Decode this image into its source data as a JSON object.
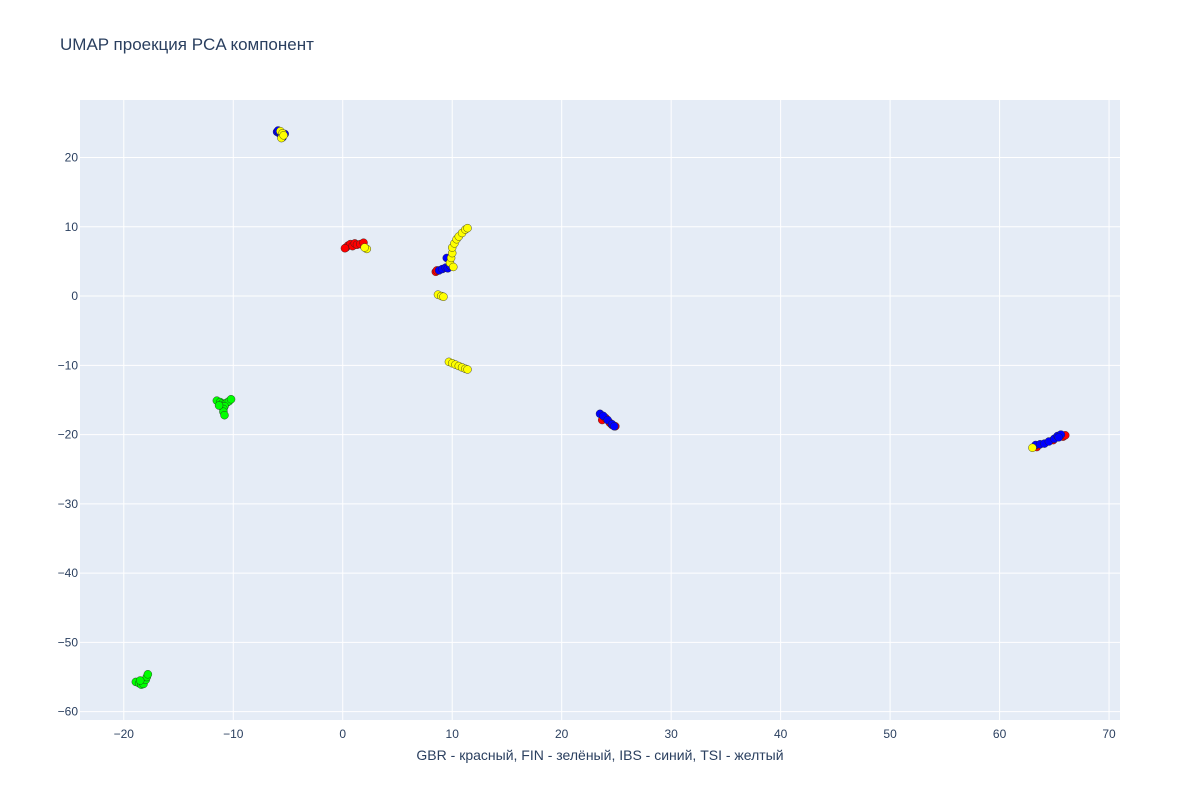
{
  "chart_data": {
    "type": "scatter",
    "title": "UMAP проекция PCA компонент",
    "xlabel": "GBR - красный, FIN - зелёный, IBS - синий, TSI - желтый",
    "ylabel": "",
    "xlim": [
      -24,
      71
    ],
    "ylim": [
      -61.2,
      28.3
    ],
    "xticks": [
      -20,
      -10,
      0,
      10,
      20,
      30,
      40,
      50,
      60,
      70
    ],
    "yticks": [
      -60,
      -50,
      -40,
      -30,
      -20,
      -10,
      0,
      10,
      20
    ],
    "grid": true,
    "legend": "none",
    "colors": {
      "GBR": "#ff0000",
      "FIN": "#00ff00",
      "IBS": "#0000ff",
      "TSI": "#ffff00",
      "plot_bg": "#e5ecf6",
      "grid": "#ffffff",
      "text": "#2a3f5f"
    },
    "series": [
      {
        "color": "#ff0000",
        "points": [
          [
            0.3,
            7.0
          ],
          [
            0.5,
            7.3
          ],
          [
            0.7,
            7.5
          ],
          [
            0.9,
            7.2
          ],
          [
            1.1,
            7.6
          ],
          [
            1.3,
            7.4
          ],
          [
            1.6,
            7.5
          ],
          [
            1.9,
            7.7
          ],
          [
            0.2,
            6.9
          ],
          [
            8.5,
            3.5
          ],
          [
            8.6,
            3.7
          ],
          [
            23.7,
            -17.9
          ],
          [
            24.0,
            -17.6
          ],
          [
            24.4,
            -18.3
          ],
          [
            24.6,
            -18.6
          ],
          [
            24.9,
            -18.8
          ],
          [
            65.8,
            -20.3
          ],
          [
            66.0,
            -20.1
          ],
          [
            63.4,
            -21.8
          ],
          [
            64.9,
            -20.8
          ]
        ]
      },
      {
        "color": "#00ff00",
        "points": [
          [
            -11.5,
            -15.1
          ],
          [
            -11.2,
            -15.3
          ],
          [
            -11.0,
            -15.5
          ],
          [
            -10.8,
            -15.6
          ],
          [
            -10.6,
            -15.4
          ],
          [
            -10.4,
            -15.2
          ],
          [
            -10.2,
            -14.9
          ],
          [
            -10.8,
            -15.9
          ],
          [
            -10.9,
            -16.3
          ],
          [
            -10.9,
            -16.7
          ],
          [
            -10.8,
            -17.2
          ],
          [
            -11.3,
            -15.8
          ],
          [
            -18.9,
            -55.7
          ],
          [
            -18.6,
            -55.9
          ],
          [
            -18.4,
            -56.1
          ],
          [
            -18.2,
            -56.0
          ],
          [
            -18.0,
            -55.4
          ],
          [
            -17.9,
            -55.0
          ],
          [
            -17.8,
            -54.6
          ],
          [
            -18.5,
            -55.5
          ]
        ]
      },
      {
        "color": "#0000ff",
        "points": [
          [
            -6.0,
            23.7
          ],
          [
            -5.8,
            23.5
          ],
          [
            -5.6,
            23.3
          ],
          [
            -5.3,
            23.4
          ],
          [
            -5.5,
            22.9
          ],
          [
            -5.9,
            23.9
          ],
          [
            8.8,
            3.7
          ],
          [
            9.1,
            3.9
          ],
          [
            9.4,
            4.1
          ],
          [
            9.6,
            4.0
          ],
          [
            9.5,
            5.5
          ],
          [
            9.8,
            4.4
          ],
          [
            23.5,
            -17.0
          ],
          [
            23.8,
            -17.3
          ],
          [
            24.2,
            -17.9
          ],
          [
            24.6,
            -18.5
          ],
          [
            24.8,
            -18.8
          ],
          [
            63.3,
            -21.5
          ],
          [
            63.7,
            -21.4
          ],
          [
            64.1,
            -21.3
          ],
          [
            64.5,
            -21.0
          ],
          [
            65.0,
            -20.6
          ],
          [
            65.3,
            -20.2
          ],
          [
            65.6,
            -20.0
          ],
          [
            65.4,
            -20.4
          ]
        ]
      },
      {
        "color": "#ffff00",
        "points": [
          [
            -5.7,
            23.8
          ],
          [
            -5.5,
            23.5
          ],
          [
            -5.6,
            22.8
          ],
          [
            -5.4,
            23.2
          ],
          [
            2.2,
            6.8
          ],
          [
            2.0,
            7.0
          ],
          [
            9.8,
            4.8
          ],
          [
            9.9,
            5.5
          ],
          [
            10.0,
            6.2
          ],
          [
            10.0,
            7.0
          ],
          [
            10.2,
            7.6
          ],
          [
            10.4,
            8.2
          ],
          [
            10.6,
            8.6
          ],
          [
            10.9,
            9.1
          ],
          [
            11.2,
            9.6
          ],
          [
            11.4,
            9.8
          ],
          [
            10.1,
            4.2
          ],
          [
            8.7,
            0.2
          ],
          [
            9.0,
            0.0
          ],
          [
            9.2,
            -0.1
          ],
          [
            9.7,
            -9.5
          ],
          [
            10.0,
            -9.7
          ],
          [
            10.3,
            -9.9
          ],
          [
            10.6,
            -10.1
          ],
          [
            10.9,
            -10.3
          ],
          [
            11.2,
            -10.5
          ],
          [
            11.4,
            -10.6
          ],
          [
            63.0,
            -21.9
          ]
        ]
      }
    ]
  }
}
